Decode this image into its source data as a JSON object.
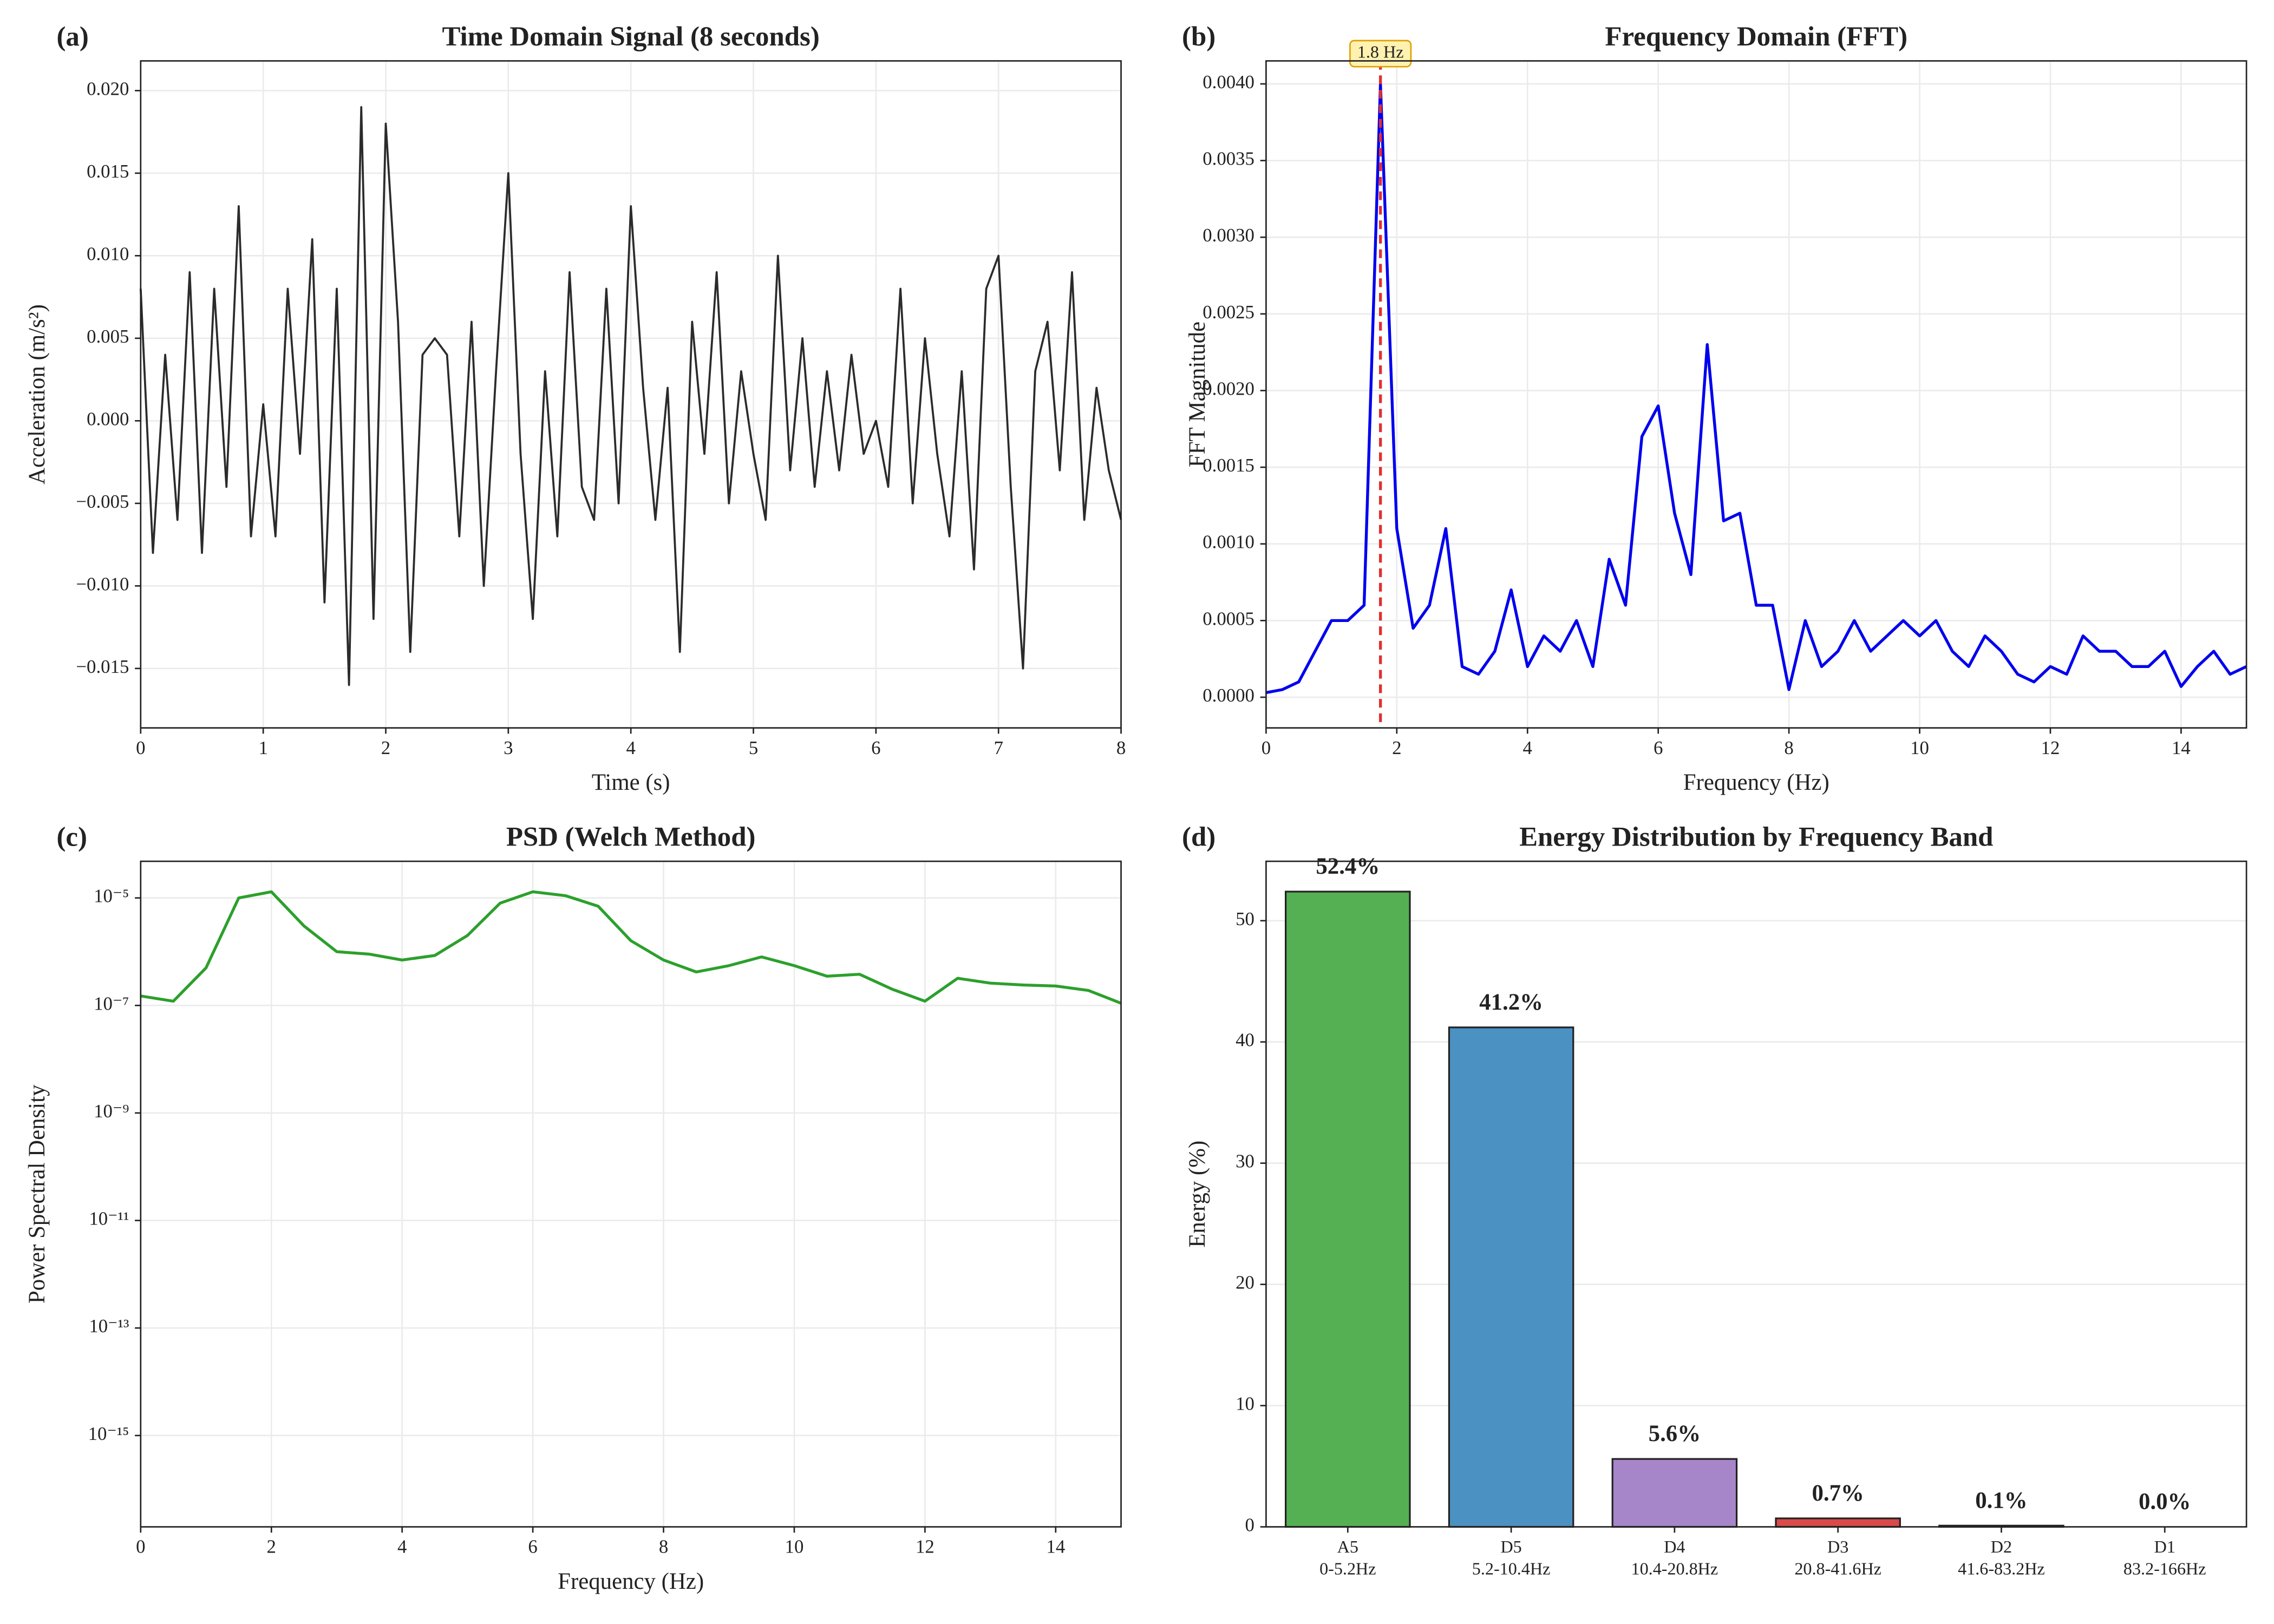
{
  "chart_data": [
    {
      "type": "line",
      "panel_label": "(a)",
      "title": "Time Domain Signal (8 seconds)",
      "xlabel": "Time (s)",
      "ylabel": "Acceleration (m/s²)",
      "color": "#2b2b2b",
      "grid": true,
      "x": [
        0,
        0.1,
        0.2,
        0.3,
        0.4,
        0.5,
        0.6,
        0.7,
        0.8,
        0.9,
        1.0,
        1.1,
        1.2,
        1.3,
        1.4,
        1.5,
        1.6,
        1.7,
        1.8,
        1.9,
        2.0,
        2.1,
        2.2,
        2.3,
        2.4,
        2.5,
        2.6,
        2.7,
        2.8,
        2.9,
        3.0,
        3.1,
        3.2,
        3.3,
        3.4,
        3.5,
        3.6,
        3.7,
        3.8,
        3.9,
        4.0,
        4.1,
        4.2,
        4.3,
        4.4,
        4.5,
        4.6,
        4.7,
        4.8,
        4.9,
        5.0,
        5.1,
        5.2,
        5.3,
        5.4,
        5.5,
        5.6,
        5.7,
        5.8,
        5.9,
        6.0,
        6.1,
        6.2,
        6.3,
        6.4,
        6.5,
        6.6,
        6.7,
        6.8,
        6.9,
        7.0,
        7.1,
        7.2,
        7.3,
        7.4,
        7.5,
        7.6,
        7.7,
        7.8,
        7.9,
        8.0
      ],
      "values": [
        0.008,
        -0.008,
        0.004,
        -0.006,
        0.009,
        -0.008,
        0.008,
        -0.004,
        0.013,
        -0.007,
        0.001,
        -0.007,
        0.008,
        -0.002,
        0.011,
        -0.011,
        0.008,
        -0.016,
        0.019,
        -0.012,
        0.018,
        0.006,
        -0.014,
        0.004,
        0.005,
        0.004,
        -0.007,
        0.006,
        -0.01,
        0.003,
        0.015,
        -0.002,
        -0.012,
        0.003,
        -0.007,
        0.009,
        -0.004,
        -0.006,
        0.008,
        -0.005,
        0.013,
        0.002,
        -0.006,
        0.002,
        -0.014,
        0.006,
        -0.002,
        0.009,
        -0.005,
        0.003,
        -0.002,
        -0.006,
        0.01,
        -0.003,
        0.005,
        -0.004,
        0.003,
        -0.003,
        0.004,
        -0.002,
        0.0,
        -0.004,
        0.008,
        -0.005,
        0.005,
        -0.002,
        -0.007,
        0.003,
        -0.009,
        0.008,
        0.01,
        -0.004,
        -0.015,
        0.003,
        0.006,
        -0.003,
        0.009,
        -0.006,
        0.002,
        -0.003,
        -0.006
      ],
      "xlim": [
        0,
        8
      ],
      "ylim": [
        -0.0186,
        0.0218
      ],
      "xticks": [
        0,
        1,
        2,
        3,
        4,
        5,
        6,
        7,
        8
      ],
      "yticks": [
        {
          "value": -0.015,
          "label": "−0.015"
        },
        {
          "value": -0.01,
          "label": "−0.010"
        },
        {
          "value": -0.005,
          "label": "−0.005"
        },
        {
          "value": 0,
          "label": "0.000"
        },
        {
          "value": 0.005,
          "label": "0.005"
        },
        {
          "value": 0.01,
          "label": "0.010"
        },
        {
          "value": 0.015,
          "label": "0.015"
        },
        {
          "value": 0.02,
          "label": "0.020"
        }
      ]
    },
    {
      "type": "line",
      "panel_label": "(b)",
      "title": "Frequency Domain (FFT)",
      "xlabel": "Frequency (Hz)",
      "ylabel": "FFT Magnitude",
      "color": "#0000ee",
      "grid": true,
      "x": [
        0,
        0.25,
        0.5,
        0.75,
        1.0,
        1.25,
        1.5,
        1.75,
        2.0,
        2.25,
        2.5,
        2.75,
        3.0,
        3.25,
        3.5,
        3.75,
        4.0,
        4.25,
        4.5,
        4.75,
        5.0,
        5.25,
        5.5,
        5.75,
        6.0,
        6.25,
        6.5,
        6.75,
        7.0,
        7.25,
        7.5,
        7.75,
        8.0,
        8.25,
        8.5,
        8.75,
        9.0,
        9.25,
        9.5,
        9.75,
        10.0,
        10.25,
        10.5,
        10.75,
        11.0,
        11.25,
        11.5,
        11.75,
        12.0,
        12.25,
        12.5,
        12.75,
        13.0,
        13.25,
        13.5,
        13.75,
        14.0,
        14.25,
        14.5,
        14.75,
        15.0
      ],
      "values": [
        3e-05,
        5e-05,
        0.0001,
        0.0003,
        0.0005,
        0.0005,
        0.0006,
        0.004,
        0.0011,
        0.00045,
        0.0006,
        0.0011,
        0.0002,
        0.00015,
        0.0003,
        0.0007,
        0.0002,
        0.0004,
        0.0003,
        0.0005,
        0.0002,
        0.0009,
        0.0006,
        0.0017,
        0.0019,
        0.0012,
        0.0008,
        0.0023,
        0.00115,
        0.0012,
        0.0006,
        0.0006,
        5e-05,
        0.0005,
        0.0002,
        0.0003,
        0.0005,
        0.0003,
        0.0004,
        0.0005,
        0.0004,
        0.0005,
        0.0003,
        0.0002,
        0.0004,
        0.0003,
        0.00015,
        0.0001,
        0.0002,
        0.00015,
        0.0004,
        0.0003,
        0.0003,
        0.0002,
        0.0002,
        0.0003,
        7e-05,
        0.0002,
        0.0003,
        0.00015,
        0.0002
      ],
      "peak": {
        "x": 1.75,
        "label": "1.8 Hz",
        "color": "#e03030"
      },
      "xlim": [
        0,
        15
      ],
      "ylim": [
        -0.0002,
        0.00415
      ],
      "xticks": [
        0,
        2,
        4,
        6,
        8,
        10,
        12,
        14
      ],
      "yticks": [
        {
          "value": 0,
          "label": "0.0000"
        },
        {
          "value": 0.0005,
          "label": "0.0005"
        },
        {
          "value": 0.001,
          "label": "0.0010"
        },
        {
          "value": 0.0015,
          "label": "0.0015"
        },
        {
          "value": 0.002,
          "label": "0.0020"
        },
        {
          "value": 0.0025,
          "label": "0.0025"
        },
        {
          "value": 0.003,
          "label": "0.0030"
        },
        {
          "value": 0.0035,
          "label": "0.0035"
        },
        {
          "value": 0.004,
          "label": "0.0040"
        }
      ]
    },
    {
      "type": "line",
      "panel_label": "(c)",
      "title": "PSD (Welch Method)",
      "xlabel": "Frequency (Hz)",
      "ylabel": "Power Spectral Density",
      "color": "#2ca02c",
      "grid": true,
      "log_y": true,
      "x": [
        0,
        0.5,
        1,
        1.5,
        2,
        2.5,
        3,
        3.5,
        4,
        4.5,
        5,
        5.5,
        6,
        6.5,
        7,
        7.5,
        8,
        8.5,
        9,
        9.5,
        10,
        10.5,
        11,
        11.5,
        12,
        12.5,
        13,
        13.5,
        14,
        14.5,
        15
      ],
      "values": [
        1.5e-07,
        1.2e-07,
        5e-07,
        1e-05,
        1.3e-05,
        3e-06,
        1e-06,
        9e-07,
        7e-07,
        8.5e-07,
        2e-06,
        8e-06,
        1.3e-05,
        1.1e-05,
        7e-06,
        1.6e-06,
        7e-07,
        4.2e-07,
        5.5e-07,
        8e-07,
        5.5e-07,
        3.5e-07,
        3.8e-07,
        2e-07,
        1.2e-07,
        3.2e-07,
        2.6e-07,
        2.4e-07,
        2.3e-07,
        1.9e-07,
        1.1e-07
      ],
      "xlim": [
        0,
        15
      ],
      "ylim": [
        2e-17,
        4.8e-05
      ],
      "xticks": [
        0,
        2,
        4,
        6,
        8,
        10,
        12,
        14
      ],
      "yticks": [
        {
          "value": 1e-15,
          "label": "10⁻¹⁵"
        },
        {
          "value": 1e-13,
          "label": "10⁻¹³"
        },
        {
          "value": 1e-11,
          "label": "10⁻¹¹"
        },
        {
          "value": 1e-09,
          "label": "10⁻⁹"
        },
        {
          "value": 1e-07,
          "label": "10⁻⁷"
        },
        {
          "value": 1e-05,
          "label": "10⁻⁵"
        }
      ]
    },
    {
      "type": "bar",
      "panel_label": "(d)",
      "title": "Energy Distribution by Frequency Band",
      "ylabel": "Energy (%)",
      "grid": true,
      "categories": [
        "A5",
        "D5",
        "D4",
        "D3",
        "D2",
        "D1"
      ],
      "category_sublabels": [
        "0-5.2Hz",
        "5.2-10.4Hz",
        "10.4-20.8Hz",
        "20.8-41.6Hz",
        "41.6-83.2Hz",
        "83.2-166Hz"
      ],
      "values": [
        52.4,
        41.2,
        5.6,
        0.7,
        0.1,
        0.0
      ],
      "value_labels": [
        "52.4%",
        "41.2%",
        "5.6%",
        "0.7%",
        "0.1%",
        "0.0%"
      ],
      "colors": [
        "#55b054",
        "#4b91c2",
        "#a785c9",
        "#d94a4a",
        "#8c6660",
        "#e68fc8"
      ],
      "ylim": [
        0,
        54.9
      ],
      "yticks": [
        0,
        10,
        20,
        30,
        40,
        50
      ]
    }
  ]
}
